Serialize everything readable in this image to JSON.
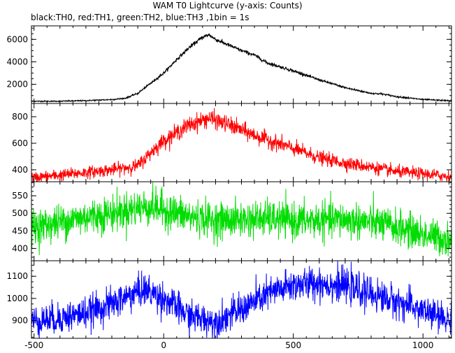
{
  "chart_data": {
    "type": "line",
    "title": "WAM T0 Lightcurve (y-axis: Counts)",
    "subtitle": "black:TH0, red:TH1, green:TH2, blue:TH3 ,1bin = 1s",
    "xlabel": "",
    "ylabel": "",
    "xlim": [
      -510,
      1110
    ],
    "x_ticks": [
      -500,
      0,
      500,
      1000
    ],
    "grid": false,
    "panels": [
      {
        "name": "TH0",
        "color": "#000000",
        "ylim": [
          300,
          7200
        ],
        "y_ticks": [
          2000,
          4000,
          6000
        ],
        "x": [
          -500,
          -400,
          -300,
          -200,
          -150,
          -100,
          -50,
          0,
          50,
          100,
          150,
          175,
          200,
          250,
          300,
          350,
          400,
          500,
          600,
          700,
          800,
          840,
          900,
          1000,
          1100
        ],
        "values": [
          500,
          500,
          550,
          650,
          750,
          1200,
          2100,
          3000,
          4200,
          5300,
          6200,
          6400,
          6000,
          5500,
          5000,
          4600,
          3900,
          3200,
          2400,
          1700,
          1200,
          1150,
          900,
          650,
          550
        ]
      },
      {
        "name": "TH1",
        "color": "#ff0000",
        "ylim": [
          310,
          900
        ],
        "y_ticks": [
          400,
          600,
          800
        ],
        "x": [
          -500,
          -400,
          -300,
          -200,
          -100,
          -50,
          0,
          100,
          175,
          250,
          350,
          500,
          600,
          700,
          800,
          900,
          1000,
          1100
        ],
        "values": [
          340,
          360,
          380,
          400,
          430,
          530,
          620,
          740,
          790,
          740,
          660,
          560,
          490,
          450,
          420,
          385,
          370,
          350
        ]
      },
      {
        "name": "TH2",
        "color": "#00dd00",
        "ylim": [
          365,
          590
        ],
        "y_ticks": [
          400,
          450,
          500,
          550
        ],
        "x": [
          -500,
          -400,
          -300,
          -200,
          -100,
          -50,
          0,
          100,
          200,
          300,
          400,
          500,
          600,
          700,
          800,
          900,
          1000,
          1100
        ],
        "values": [
          460,
          475,
          490,
          500,
          515,
          520,
          510,
          490,
          480,
          482,
          485,
          478,
          480,
          482,
          475,
          460,
          440,
          425
        ]
      },
      {
        "name": "TH3",
        "color": "#0000ff",
        "ylim": [
          820,
          1170
        ],
        "y_ticks": [
          900,
          1000,
          1100
        ],
        "x": [
          -500,
          -400,
          -300,
          -200,
          -100,
          -75,
          0,
          100,
          200,
          300,
          400,
          500,
          600,
          700,
          800,
          900,
          1000,
          1100
        ],
        "values": [
          900,
          910,
          935,
          975,
          1030,
          1040,
          1000,
          920,
          895,
          950,
          1020,
          1060,
          1070,
          1055,
          1020,
          985,
          945,
          900
        ]
      }
    ]
  }
}
